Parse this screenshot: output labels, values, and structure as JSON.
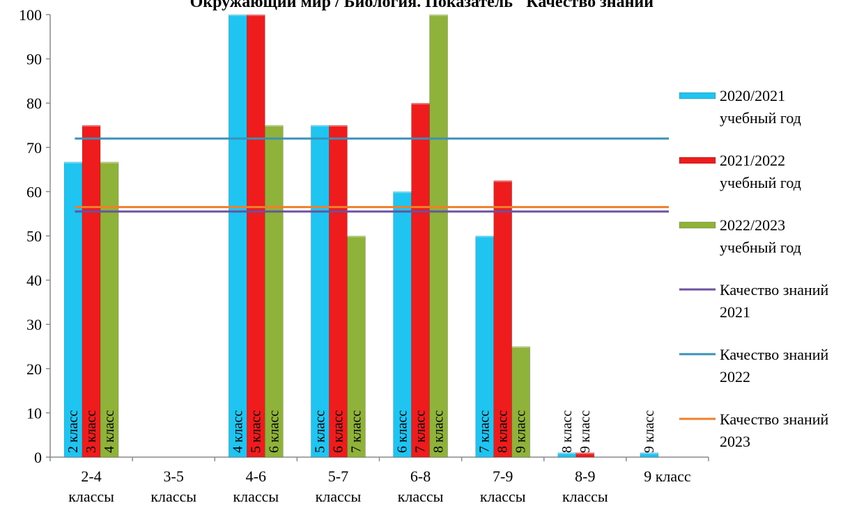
{
  "chart_data": {
    "type": "bar",
    "title": "Окружающий мир / Биология. Показатель \"Качество знаний\"",
    "xlabel": "",
    "ylabel": "",
    "ylim": [
      0,
      100
    ],
    "yticks": [
      "0",
      "10",
      "20",
      "30",
      "40",
      "50",
      "60",
      "70",
      "80",
      "90",
      "100"
    ],
    "categories": [
      [
        "2-4",
        "классы"
      ],
      [
        "3-5",
        "классы"
      ],
      [
        "4-6",
        "классы"
      ],
      [
        "5-7",
        "классы"
      ],
      [
        "6-8",
        "классы"
      ],
      [
        "7-9",
        "классы"
      ],
      [
        "8-9",
        "классы"
      ],
      [
        "9 класс"
      ]
    ],
    "series": [
      {
        "name": "2020/2021 учебный год",
        "legend_lines": [
          "2020/2021",
          "учебный год"
        ],
        "color": "#1fc4f0",
        "values": [
          66.7,
          0,
          100,
          75,
          60,
          50,
          1,
          1
        ],
        "bar_labels": [
          "2 класс",
          "",
          "4 класс",
          "5 класс",
          "6 класс",
          "7 класс",
          "8 класс",
          "9 класс"
        ]
      },
      {
        "name": "2021/2022 учебный год",
        "legend_lines": [
          "2021/2022",
          "учебный год"
        ],
        "color": "#ee1c1c",
        "values": [
          75,
          0,
          100,
          75,
          80,
          62.5,
          1,
          0
        ],
        "bar_labels": [
          "3 класс",
          "",
          "5 класс",
          "6 класс",
          "7 класс",
          "8 класс",
          "9 класс",
          ""
        ]
      },
      {
        "name": "2022/2023 учебный год",
        "legend_lines": [
          "2022/2023",
          "учебный год"
        ],
        "color": "#8fb33a",
        "values": [
          66.7,
          0,
          75,
          50,
          100,
          25,
          0,
          0
        ],
        "bar_labels": [
          "4 класс",
          "",
          "6 класс",
          "7 класс",
          "8 класс",
          "9 класс",
          "",
          ""
        ]
      }
    ],
    "reference_lines": [
      {
        "name": "Качество знаний 2021",
        "legend_lines": [
          "Качество знаний",
          "2021"
        ],
        "value": 55.5,
        "color": "#6b4fa0"
      },
      {
        "name": "Качество знаний 2022",
        "legend_lines": [
          "Качество знаний",
          "2022"
        ],
        "value": 72,
        "color": "#3a90b8"
      },
      {
        "name": "Качество знаний 2023",
        "legend_lines": [
          "Качество знаний",
          "2023"
        ],
        "value": 56.5,
        "color": "#f07f2a"
      }
    ],
    "grid": false,
    "legend_position": "right"
  }
}
